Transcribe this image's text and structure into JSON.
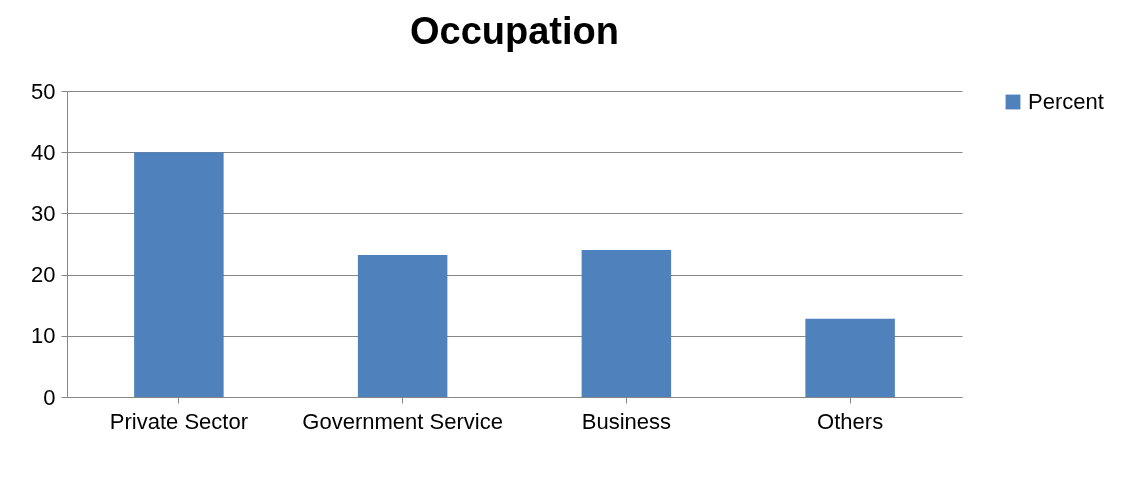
{
  "chart_data": {
    "type": "bar",
    "title": "Occupation",
    "categories": [
      "Private Sector",
      "Government Service",
      "Business",
      "Others"
    ],
    "series": [
      {
        "name": "Percent",
        "color": "#4f81bd",
        "values": [
          40,
          23.2,
          24,
          12.8
        ]
      }
    ],
    "ylim": [
      0,
      50
    ],
    "yticks": [
      0,
      10,
      20,
      30,
      40,
      50
    ],
    "grid": "y",
    "legend": "right"
  }
}
